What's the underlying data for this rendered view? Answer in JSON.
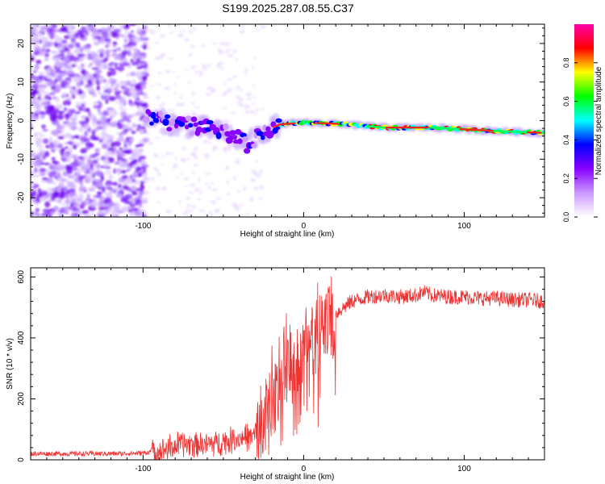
{
  "title": "S199.2025.287.08.55.C37",
  "chart_data": [
    {
      "type": "heatmap",
      "name": "spectrogram",
      "xlabel": "Height of straight line (km)",
      "ylabel": "Frequency (Hz)",
      "xlim": [
        -170,
        150
      ],
      "ylim": [
        -25,
        25
      ],
      "xticks": [
        -100,
        0,
        100
      ],
      "yticks": [
        -20,
        -10,
        0,
        10,
        20
      ],
      "colorbar": {
        "label": "Normalized spectral amplitude",
        "range": [
          0,
          1
        ],
        "ticks": [
          "0.0",
          "0.2",
          "0.4",
          "0.6",
          "0.8"
        ],
        "colors": [
          "#ffffff",
          "#cc99ff",
          "#8800ff",
          "#0000ff",
          "#00ffff",
          "#00ff00",
          "#ffff00",
          "#ff0000",
          "#ff00aa"
        ]
      },
      "ridge": {
        "description": "dominant frequency ridge",
        "x": [
          -95,
          -80,
          -60,
          -45,
          -35,
          -25,
          -15,
          0,
          20,
          50,
          80,
          110,
          150
        ],
        "y": [
          0.5,
          -1,
          -2,
          -4,
          -6,
          -3,
          -1,
          -0.5,
          -0.8,
          -1.8,
          -1.8,
          -2.5,
          -3.2
        ]
      }
    },
    {
      "type": "line",
      "name": "snr",
      "xlabel": "Height of straight line (km)",
      "ylabel": "SNR (10 * v/v)",
      "xlim": [
        -170,
        150
      ],
      "ylim": [
        0,
        630
      ],
      "xticks": [
        -100,
        0,
        100
      ],
      "yticks": [
        0,
        200,
        400,
        600
      ],
      "color": "#ee3333",
      "series_shape": {
        "x": [
          -170,
          -120,
          -100,
          -90,
          -80,
          -70,
          -60,
          -50,
          -40,
          -30,
          -25,
          -20,
          -15,
          -10,
          -5,
          0,
          5,
          10,
          15,
          20,
          25,
          30,
          40,
          50,
          60,
          70,
          75,
          80,
          90,
          100,
          110,
          120,
          130,
          140,
          150
        ],
        "y": [
          20,
          20,
          22,
          30,
          45,
          55,
          50,
          60,
          70,
          80,
          130,
          200,
          250,
          300,
          300,
          350,
          380,
          420,
          450,
          480,
          500,
          520,
          535,
          540,
          535,
          540,
          550,
          540,
          535,
          535,
          530,
          530,
          525,
          525,
          520
        ]
      }
    }
  ]
}
